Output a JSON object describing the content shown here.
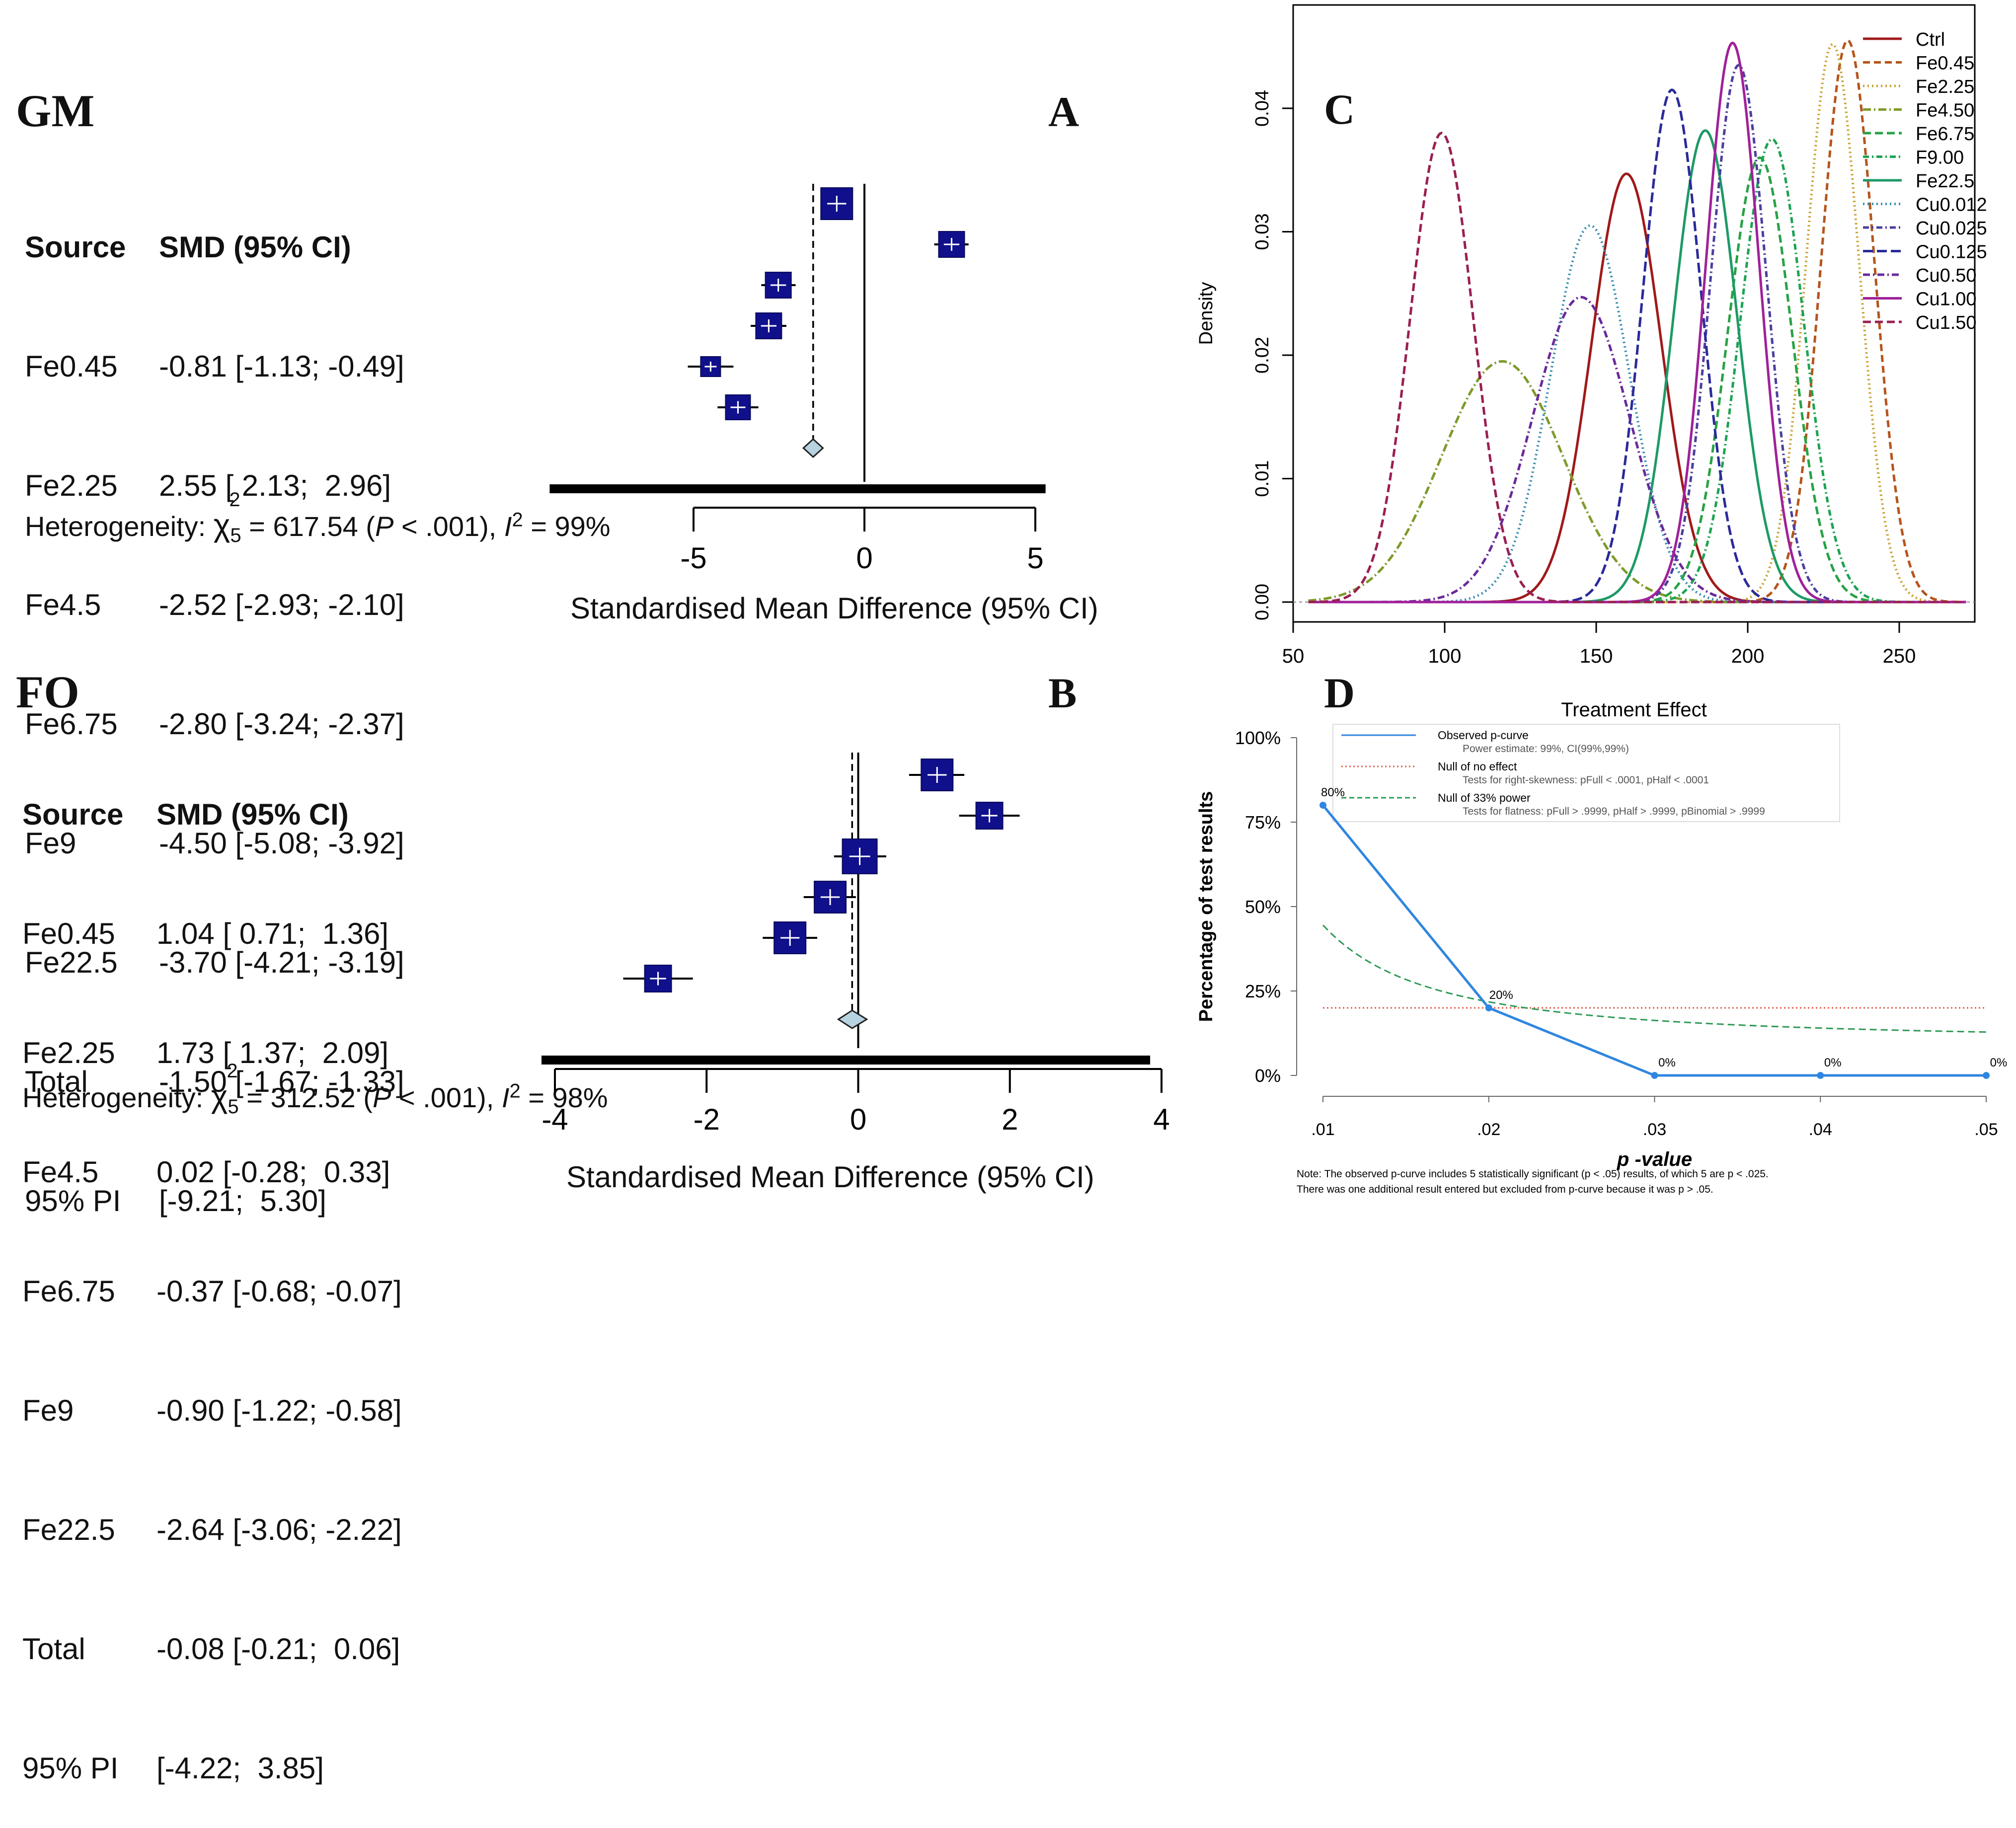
{
  "chart_data": [
    {
      "type": "forest",
      "group": "GM",
      "panel": "A",
      "header": {
        "source": "Source",
        "smd": "SMD (95% CI)"
      },
      "rows": [
        {
          "source": "Fe0.45",
          "smd": -0.81,
          "lo": -1.13,
          "hi": -0.49,
          "text": "-0.81 [-1.13; -0.49]"
        },
        {
          "source": "Fe2.25",
          "smd": 2.55,
          "lo": 2.13,
          "hi": 2.96,
          "text": "2.55 [ 2.13;  2.96]"
        },
        {
          "source": "Fe4.5",
          "smd": -2.52,
          "lo": -2.93,
          "hi": -2.1,
          "text": "-2.52 [-2.93; -2.10]"
        },
        {
          "source": "Fe6.75",
          "smd": -2.8,
          "lo": -3.24,
          "hi": -2.37,
          "text": "-2.80 [-3.24; -2.37]"
        },
        {
          "source": "Fe9",
          "smd": -4.5,
          "lo": -5.08,
          "hi": -3.92,
          "text": "-4.50 [-5.08; -3.92]"
        },
        {
          "source": "Fe22.5",
          "smd": -3.7,
          "lo": -4.21,
          "hi": -3.19,
          "text": "-3.70 [-4.21; -3.19]"
        }
      ],
      "total": {
        "source": "Total",
        "smd": -1.5,
        "lo": -1.67,
        "hi": -1.33,
        "text": "-1.50 [-1.67; -1.33]"
      },
      "pi": {
        "source": "95% PI",
        "lo": -9.21,
        "hi": 5.3,
        "text": "[-9.21;  5.30]"
      },
      "heterogeneity": {
        "prefix": "Heterogeneity: ",
        "chi": "χ",
        "chi_sup": "2",
        "chi_sub": "5",
        "rest1": " = 617.54 (",
        "p": "P",
        "rest2": " < .001), ",
        "i": "I",
        "i_sup": "2",
        "rest3": " = 99%"
      },
      "xlim": [
        -5,
        5
      ],
      "xticks": [
        -5,
        0,
        5
      ],
      "xlabel": "Standardised Mean Difference (95% CI)"
    },
    {
      "type": "forest",
      "group": "FO",
      "panel": "B",
      "header": {
        "source": "Source",
        "smd": "SMD (95% CI)"
      },
      "rows": [
        {
          "source": "Fe0.45",
          "smd": 1.04,
          "lo": 0.71,
          "hi": 1.36,
          "text": "1.04 [ 0.71;  1.36]"
        },
        {
          "source": "Fe2.25",
          "smd": 1.73,
          "lo": 1.37,
          "hi": 2.09,
          "text": "1.73 [ 1.37;  2.09]"
        },
        {
          "source": "Fe4.5",
          "smd": 0.02,
          "lo": -0.28,
          "hi": 0.33,
          "text": "0.02 [-0.28;  0.33]"
        },
        {
          "source": "Fe6.75",
          "smd": -0.37,
          "lo": -0.68,
          "hi": -0.07,
          "text": "-0.37 [-0.68; -0.07]"
        },
        {
          "source": "Fe9",
          "smd": -0.9,
          "lo": -1.22,
          "hi": -0.58,
          "text": "-0.90 [-1.22; -0.58]"
        },
        {
          "source": "Fe22.5",
          "smd": -2.64,
          "lo": -3.06,
          "hi": -2.22,
          "text": "-2.64 [-3.06; -2.22]"
        }
      ],
      "total": {
        "source": "Total",
        "smd": -0.08,
        "lo": -0.21,
        "hi": 0.06,
        "text": "-0.08 [-0.21;  0.06]"
      },
      "pi": {
        "source": "95% PI",
        "lo": -4.22,
        "hi": 3.85,
        "text": "[-4.22;  3.85]"
      },
      "heterogeneity": {
        "prefix": "Heterogeneity: ",
        "chi": "χ",
        "chi_sup": "2",
        "chi_sub": "5",
        "rest1": " = 312.52 (",
        "p": "P",
        "rest2": " < .001), ",
        "i": "I",
        "i_sup": "2",
        "rest3": " = 98%"
      },
      "xlim": [
        -4,
        4
      ],
      "xticks": [
        -4,
        -2,
        0,
        2,
        4
      ],
      "xlabel": "Standardised Mean Difference (95% CI)"
    },
    {
      "type": "line",
      "panel": "C",
      "title": "",
      "xlabel": "Treatment Effect",
      "ylabel": "Density",
      "xlim": [
        50,
        275
      ],
      "ylim": [
        0,
        0.046
      ],
      "xticks": [
        50,
        100,
        150,
        200,
        250
      ],
      "yticks": [
        0.0,
        0.01,
        0.02,
        0.03,
        0.04
      ],
      "ytick_labels": [
        "0.00",
        "0.01",
        "0.02",
        "0.03",
        "0.04"
      ],
      "series": [
        {
          "name": "Ctrl",
          "mean": 160,
          "sd": 11.5,
          "peak": 0.0347,
          "color": "#a01919",
          "dash": ""
        },
        {
          "name": "Fe0.45",
          "mean": 233,
          "sd": 8.8,
          "peak": 0.0455,
          "color": "#b5551b",
          "dash": "14,8"
        },
        {
          "name": "Fe2.25",
          "mean": 228,
          "sd": 8.8,
          "peak": 0.0452,
          "color": "#c8a231",
          "dash": "3,6"
        },
        {
          "name": "Fe4.50",
          "mean": 119,
          "sd": 20,
          "peak": 0.0195,
          "color": "#7d9a2a",
          "dash": "16,6,3,6"
        },
        {
          "name": "Fe6.75",
          "mean": 204,
          "sd": 10.6,
          "peak": 0.036,
          "color": "#27a245",
          "dash": "16,8"
        },
        {
          "name": "F9.00",
          "mean": 208,
          "sd": 10.5,
          "peak": 0.0375,
          "color": "#1ca353",
          "dash": "12,6,3,6"
        },
        {
          "name": "Fe22.5",
          "mean": 186,
          "sd": 10.5,
          "peak": 0.0382,
          "color": "#1d9a66",
          "dash": ""
        },
        {
          "name": "Cu0.012",
          "mean": 148,
          "sd": 13,
          "peak": 0.0305,
          "color": "#3a8fb0",
          "dash": "3,6"
        },
        {
          "name": "Cu0.025",
          "mean": 197,
          "sd": 9.2,
          "peak": 0.0435,
          "color": "#4b3fa0",
          "dash": "12,6,3,6"
        },
        {
          "name": "Cu0.125",
          "mean": 175,
          "sd": 9.6,
          "peak": 0.0415,
          "color": "#2a2a9a",
          "dash": "20,8"
        },
        {
          "name": "Cu0.50",
          "mean": 145,
          "sd": 16,
          "peak": 0.0247,
          "color": "#6a2a9a",
          "dash": "14,6,3,6"
        },
        {
          "name": "Cu1.00",
          "mean": 195,
          "sd": 8.8,
          "peak": 0.0453,
          "color": "#a0209a",
          "dash": ""
        },
        {
          "name": "Cu1.50",
          "mean": 99,
          "sd": 10.4,
          "peak": 0.038,
          "color": "#9a1f53",
          "dash": "16,8"
        }
      ]
    },
    {
      "type": "line",
      "panel": "D",
      "xlabel": "p -value",
      "ylabel": "Percentage of test results",
      "x": [
        0.01,
        0.02,
        0.03,
        0.04,
        0.05
      ],
      "xtick_labels": [
        ".01",
        ".02",
        ".03",
        ".04",
        ".05"
      ],
      "ylim": [
        0,
        100
      ],
      "ytick_labels": [
        "0%",
        "25%",
        "50%",
        "75%",
        "100%"
      ],
      "yticks": [
        0,
        25,
        50,
        75,
        100
      ],
      "series": [
        {
          "name": "Observed p-curve",
          "values": [
            80,
            20,
            0,
            0,
            0
          ],
          "labels": [
            "80%",
            "20%",
            "0%",
            "0%",
            "0%"
          ],
          "color": "#2f86e0"
        },
        {
          "name": "Null of no effect",
          "values": [
            20,
            20,
            20,
            20,
            20
          ],
          "color": "#e05a4a"
        },
        {
          "name": "Null of 33% power",
          "values": [
            44.5,
            19.5,
            13.5,
            11.5,
            10
          ],
          "color": "#2d9a55"
        }
      ],
      "legend": [
        {
          "title": "Observed p-curve",
          "sub": "Power estimate: 99%, CI(99%,99%)"
        },
        {
          "title": "Null of no effect",
          "sub": "Tests for right-skewness: pFull < .0001, pHalf < .0001"
        },
        {
          "title": "Null of 33% power",
          "sub": "Tests for flatness: pFull > .9999, pHalf > .9999, pBinomial > .9999"
        }
      ],
      "note_line1": "Note: The observed p-curve includes 5 statistically significant (p < .05) results, of which 5 are p < .025.",
      "note_line2": "There was one additional result entered but excluded from p-curve because it was p > .05."
    }
  ]
}
